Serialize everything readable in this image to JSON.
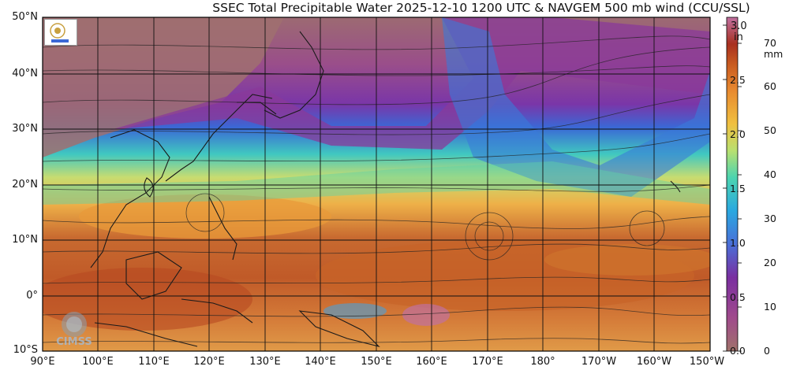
{
  "title": "SSEC Total Precipitable Water  2025-12-10 1200 UTC & NAVGEM 500 mb wind (CCU/SSL)",
  "map": {
    "lat_labels": [
      "50°N",
      "40°N",
      "30°N",
      "20°N",
      "10°N",
      "0°",
      "10°S"
    ],
    "lon_labels": [
      "90°E",
      "100°E",
      "110°E",
      "120°E",
      "130°E",
      "140°E",
      "150°E",
      "160°E",
      "170°E",
      "180°",
      "170°W",
      "160°W",
      "150°W"
    ]
  },
  "colorbar": {
    "in_unit": "in",
    "mm_unit": "mm",
    "in_ticks": [
      "3.0",
      "2.5",
      "2.0",
      "1.5",
      "1.0",
      "0.5",
      "0.0"
    ],
    "mm_ticks": [
      "70",
      "60",
      "50",
      "40",
      "30",
      "20",
      "10",
      "0"
    ],
    "colors": [
      "#a0726a",
      "#a04a8c",
      "#7a2fa0",
      "#4a6fd8",
      "#2aa8e0",
      "#4cd4b0",
      "#b8e070",
      "#f0c040",
      "#e88a30",
      "#c85a20",
      "#a83020",
      "#b04060",
      "#c070a0"
    ]
  },
  "logos": {
    "cimss_text": "CIMSS"
  }
}
